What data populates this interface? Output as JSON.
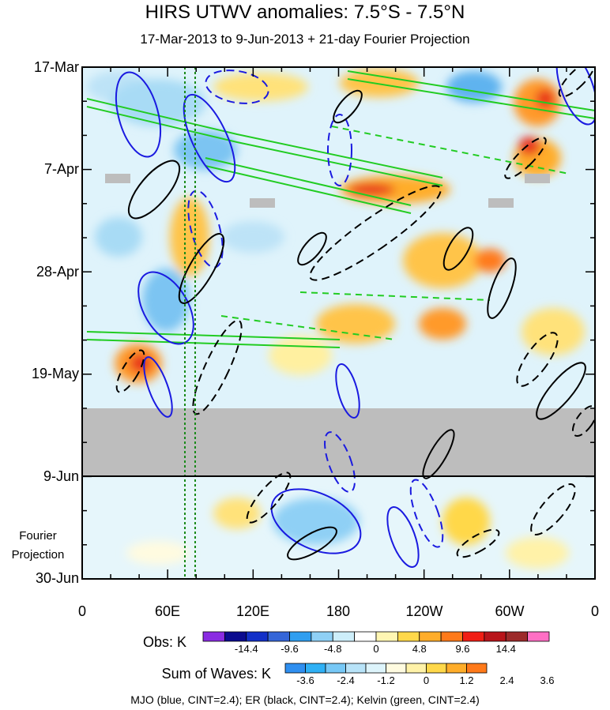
{
  "chart_data": {
    "type": "heatmap",
    "title": "HIRS UTWV anomalies: 7.5°S - 7.5°N",
    "subtitle": "17-Mar-2013 to 9-Jun-2013 + 21-day Fourier Projection",
    "x_tick_labels": [
      "0",
      "60E",
      "120E",
      "180",
      "120W",
      "60W",
      "0"
    ],
    "x_range_deg_east": [
      0,
      360
    ],
    "y_tick_labels": [
      "17-Mar",
      "7-Apr",
      "28-Apr",
      "19-May",
      "9-Jun",
      "30-Jun"
    ],
    "y_range_days": [
      0,
      105
    ],
    "observation_end": "9-Jun",
    "projection_label": [
      "Fourier",
      "Projection"
    ],
    "legend_obs": {
      "label": "Obs: K",
      "tick_labels": [
        "-14.4",
        "-9.6",
        "-4.8",
        "0",
        "4.8",
        "9.6",
        "14.4"
      ],
      "colors": [
        "#8a2be2",
        "#0b0b8f",
        "#1330c8",
        "#3566d8",
        "#2f9ef0",
        "#8fd0f5",
        "#cdeefa",
        "#ffffff",
        "#fff6b3",
        "#ffd84a",
        "#ffad2a",
        "#ff7a1a",
        "#f01e14",
        "#b8141a",
        "#9c2a2a",
        "#ff6fc4"
      ]
    },
    "legend_waves": {
      "label": "Sum of Waves: K",
      "tick_labels": [
        "-3.6",
        "-2.4",
        "-1.2",
        "0",
        "1.2",
        "2.4",
        "3.6"
      ],
      "colors": [
        "#2f8ff0",
        "#2fb0f5",
        "#77c8f6",
        "#b8e3f8",
        "#ddf4fb",
        "#fffbe0",
        "#fff2a8",
        "#ffd84a",
        "#ffad2a",
        "#ff7a1a"
      ]
    },
    "contours": "MJO (blue, CINT=2.4); ER (black, CINT=2.4); Kelvin (green, CINT=2.4)"
  }
}
